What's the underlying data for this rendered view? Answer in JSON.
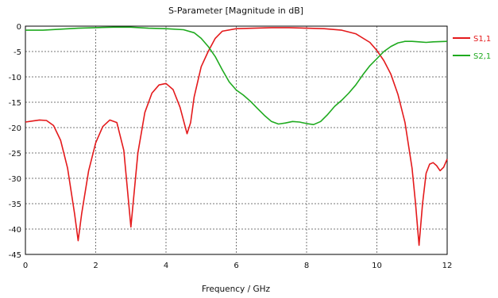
{
  "chart_data": {
    "type": "line",
    "title": "S-Parameter [Magnitude in dB]",
    "xlabel": "Frequency / GHz",
    "ylabel": "",
    "xlim": [
      0,
      12
    ],
    "ylim": [
      -45,
      0
    ],
    "xticks": [
      0,
      2,
      4,
      6,
      8,
      10,
      12
    ],
    "yticks": [
      0,
      -5,
      -10,
      -15,
      -20,
      -25,
      -30,
      -35,
      -40,
      -45
    ],
    "xtick_labels": [
      "0",
      "2",
      "4",
      "6",
      "8",
      "10",
      "12"
    ],
    "ytick_labels": [
      "0",
      "-5",
      "-10",
      "-15",
      "-20",
      "-25",
      "-30",
      "-35",
      "-40",
      "-45"
    ],
    "grid": true,
    "legend_position": "right",
    "series": [
      {
        "name": "S1,1",
        "color": "#e41a1c",
        "points": [
          [
            0,
            -18.9
          ],
          [
            0.2,
            -18.7
          ],
          [
            0.4,
            -18.5
          ],
          [
            0.6,
            -18.6
          ],
          [
            0.8,
            -19.6
          ],
          [
            1.0,
            -22.5
          ],
          [
            1.2,
            -28.0
          ],
          [
            1.4,
            -37.0
          ],
          [
            1.5,
            -42.3
          ],
          [
            1.6,
            -37.0
          ],
          [
            1.8,
            -28.5
          ],
          [
            2.0,
            -23.0
          ],
          [
            2.2,
            -19.8
          ],
          [
            2.4,
            -18.5
          ],
          [
            2.6,
            -19.0
          ],
          [
            2.8,
            -24.5
          ],
          [
            3.0,
            -39.6
          ],
          [
            3.2,
            -25.0
          ],
          [
            3.4,
            -17.0
          ],
          [
            3.6,
            -13.2
          ],
          [
            3.8,
            -11.6
          ],
          [
            4.0,
            -11.3
          ],
          [
            4.2,
            -12.5
          ],
          [
            4.4,
            -16.0
          ],
          [
            4.6,
            -21.2
          ],
          [
            4.7,
            -19.0
          ],
          [
            4.8,
            -14.0
          ],
          [
            5.0,
            -8.0
          ],
          [
            5.2,
            -5.0
          ],
          [
            5.4,
            -2.4
          ],
          [
            5.6,
            -1.0
          ],
          [
            6.0,
            -0.5
          ],
          [
            6.5,
            -0.4
          ],
          [
            7.0,
            -0.3
          ],
          [
            7.5,
            -0.3
          ],
          [
            8.0,
            -0.4
          ],
          [
            8.5,
            -0.5
          ],
          [
            9.0,
            -0.8
          ],
          [
            9.4,
            -1.5
          ],
          [
            9.8,
            -3.2
          ],
          [
            10.0,
            -4.8
          ],
          [
            10.2,
            -6.8
          ],
          [
            10.4,
            -9.5
          ],
          [
            10.6,
            -13.5
          ],
          [
            10.8,
            -19.0
          ],
          [
            11.0,
            -28.0
          ],
          [
            11.1,
            -35.0
          ],
          [
            11.2,
            -43.2
          ],
          [
            11.3,
            -35.0
          ],
          [
            11.4,
            -29.0
          ],
          [
            11.5,
            -27.2
          ],
          [
            11.6,
            -26.9
          ],
          [
            11.7,
            -27.5
          ],
          [
            11.8,
            -28.5
          ],
          [
            11.9,
            -27.8
          ],
          [
            12.0,
            -26.2
          ]
        ]
      },
      {
        "name": "S2,1",
        "color": "#1faa1f",
        "points": [
          [
            0,
            -0.8
          ],
          [
            0.5,
            -0.8
          ],
          [
            1.0,
            -0.6
          ],
          [
            1.5,
            -0.4
          ],
          [
            2.0,
            -0.3
          ],
          [
            2.5,
            -0.2
          ],
          [
            3.0,
            -0.2
          ],
          [
            3.5,
            -0.4
          ],
          [
            4.0,
            -0.5
          ],
          [
            4.5,
            -0.7
          ],
          [
            4.8,
            -1.3
          ],
          [
            5.0,
            -2.4
          ],
          [
            5.2,
            -4.0
          ],
          [
            5.4,
            -6.0
          ],
          [
            5.6,
            -8.6
          ],
          [
            5.8,
            -11.0
          ],
          [
            6.0,
            -12.6
          ],
          [
            6.2,
            -13.6
          ],
          [
            6.4,
            -14.8
          ],
          [
            6.6,
            -16.2
          ],
          [
            6.8,
            -17.6
          ],
          [
            7.0,
            -18.8
          ],
          [
            7.2,
            -19.3
          ],
          [
            7.4,
            -19.1
          ],
          [
            7.6,
            -18.8
          ],
          [
            7.8,
            -18.9
          ],
          [
            8.0,
            -19.2
          ],
          [
            8.2,
            -19.4
          ],
          [
            8.4,
            -18.8
          ],
          [
            8.6,
            -17.4
          ],
          [
            8.8,
            -15.8
          ],
          [
            9.0,
            -14.6
          ],
          [
            9.2,
            -13.2
          ],
          [
            9.4,
            -11.6
          ],
          [
            9.6,
            -9.6
          ],
          [
            9.8,
            -7.8
          ],
          [
            10.0,
            -6.4
          ],
          [
            10.2,
            -5.0
          ],
          [
            10.4,
            -4.0
          ],
          [
            10.6,
            -3.3
          ],
          [
            10.8,
            -3.0
          ],
          [
            11.0,
            -3.0
          ],
          [
            11.2,
            -3.1
          ],
          [
            11.4,
            -3.2
          ],
          [
            11.6,
            -3.1
          ],
          [
            12.0,
            -3.0
          ]
        ]
      }
    ]
  }
}
